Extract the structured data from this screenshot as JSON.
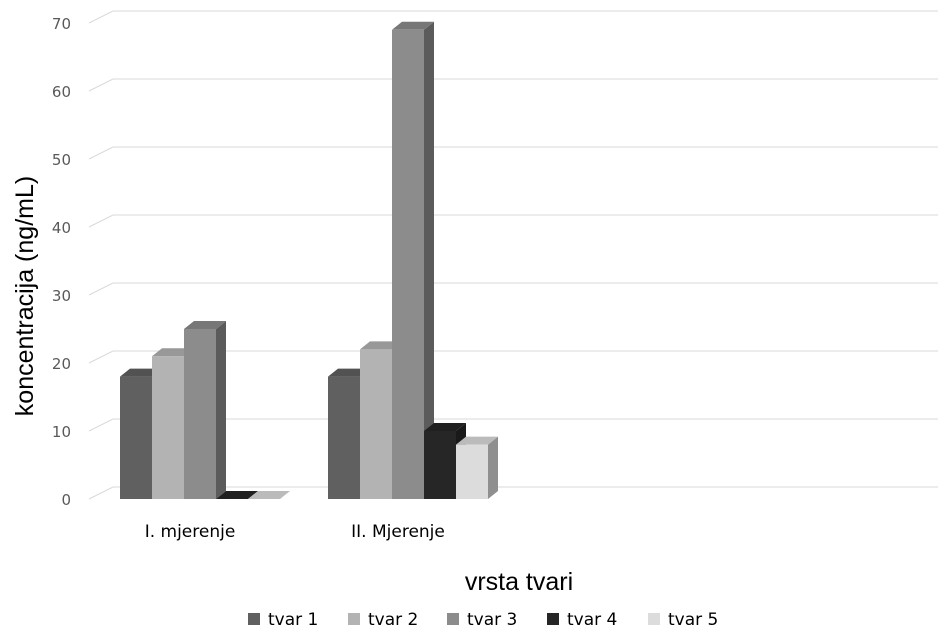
{
  "chart_data": {
    "type": "bar",
    "three_d": true,
    "categories": [
      "I. mjerenje",
      "II. Mjerenje"
    ],
    "series": [
      {
        "name": "tvar 1",
        "values": [
          18,
          18
        ],
        "color": "#606060"
      },
      {
        "name": "tvar 2",
        "values": [
          21,
          22
        ],
        "color": "#b3b3b3"
      },
      {
        "name": "tvar 3",
        "values": [
          25,
          69
        ],
        "color": "#8c8c8c"
      },
      {
        "name": "tvar 4",
        "values": [
          0,
          10
        ],
        "color": "#262626"
      },
      {
        "name": "tvar 5",
        "values": [
          0,
          8
        ],
        "color": "#dcdcdc"
      }
    ],
    "xlabel": "vrsta tvari",
    "ylabel": "koncentracija  (ng/mL)",
    "ylim": [
      0,
      70
    ],
    "yticks": [
      0,
      10,
      20,
      30,
      40,
      50,
      60,
      70
    ],
    "grid": true,
    "legend": "bottom"
  }
}
